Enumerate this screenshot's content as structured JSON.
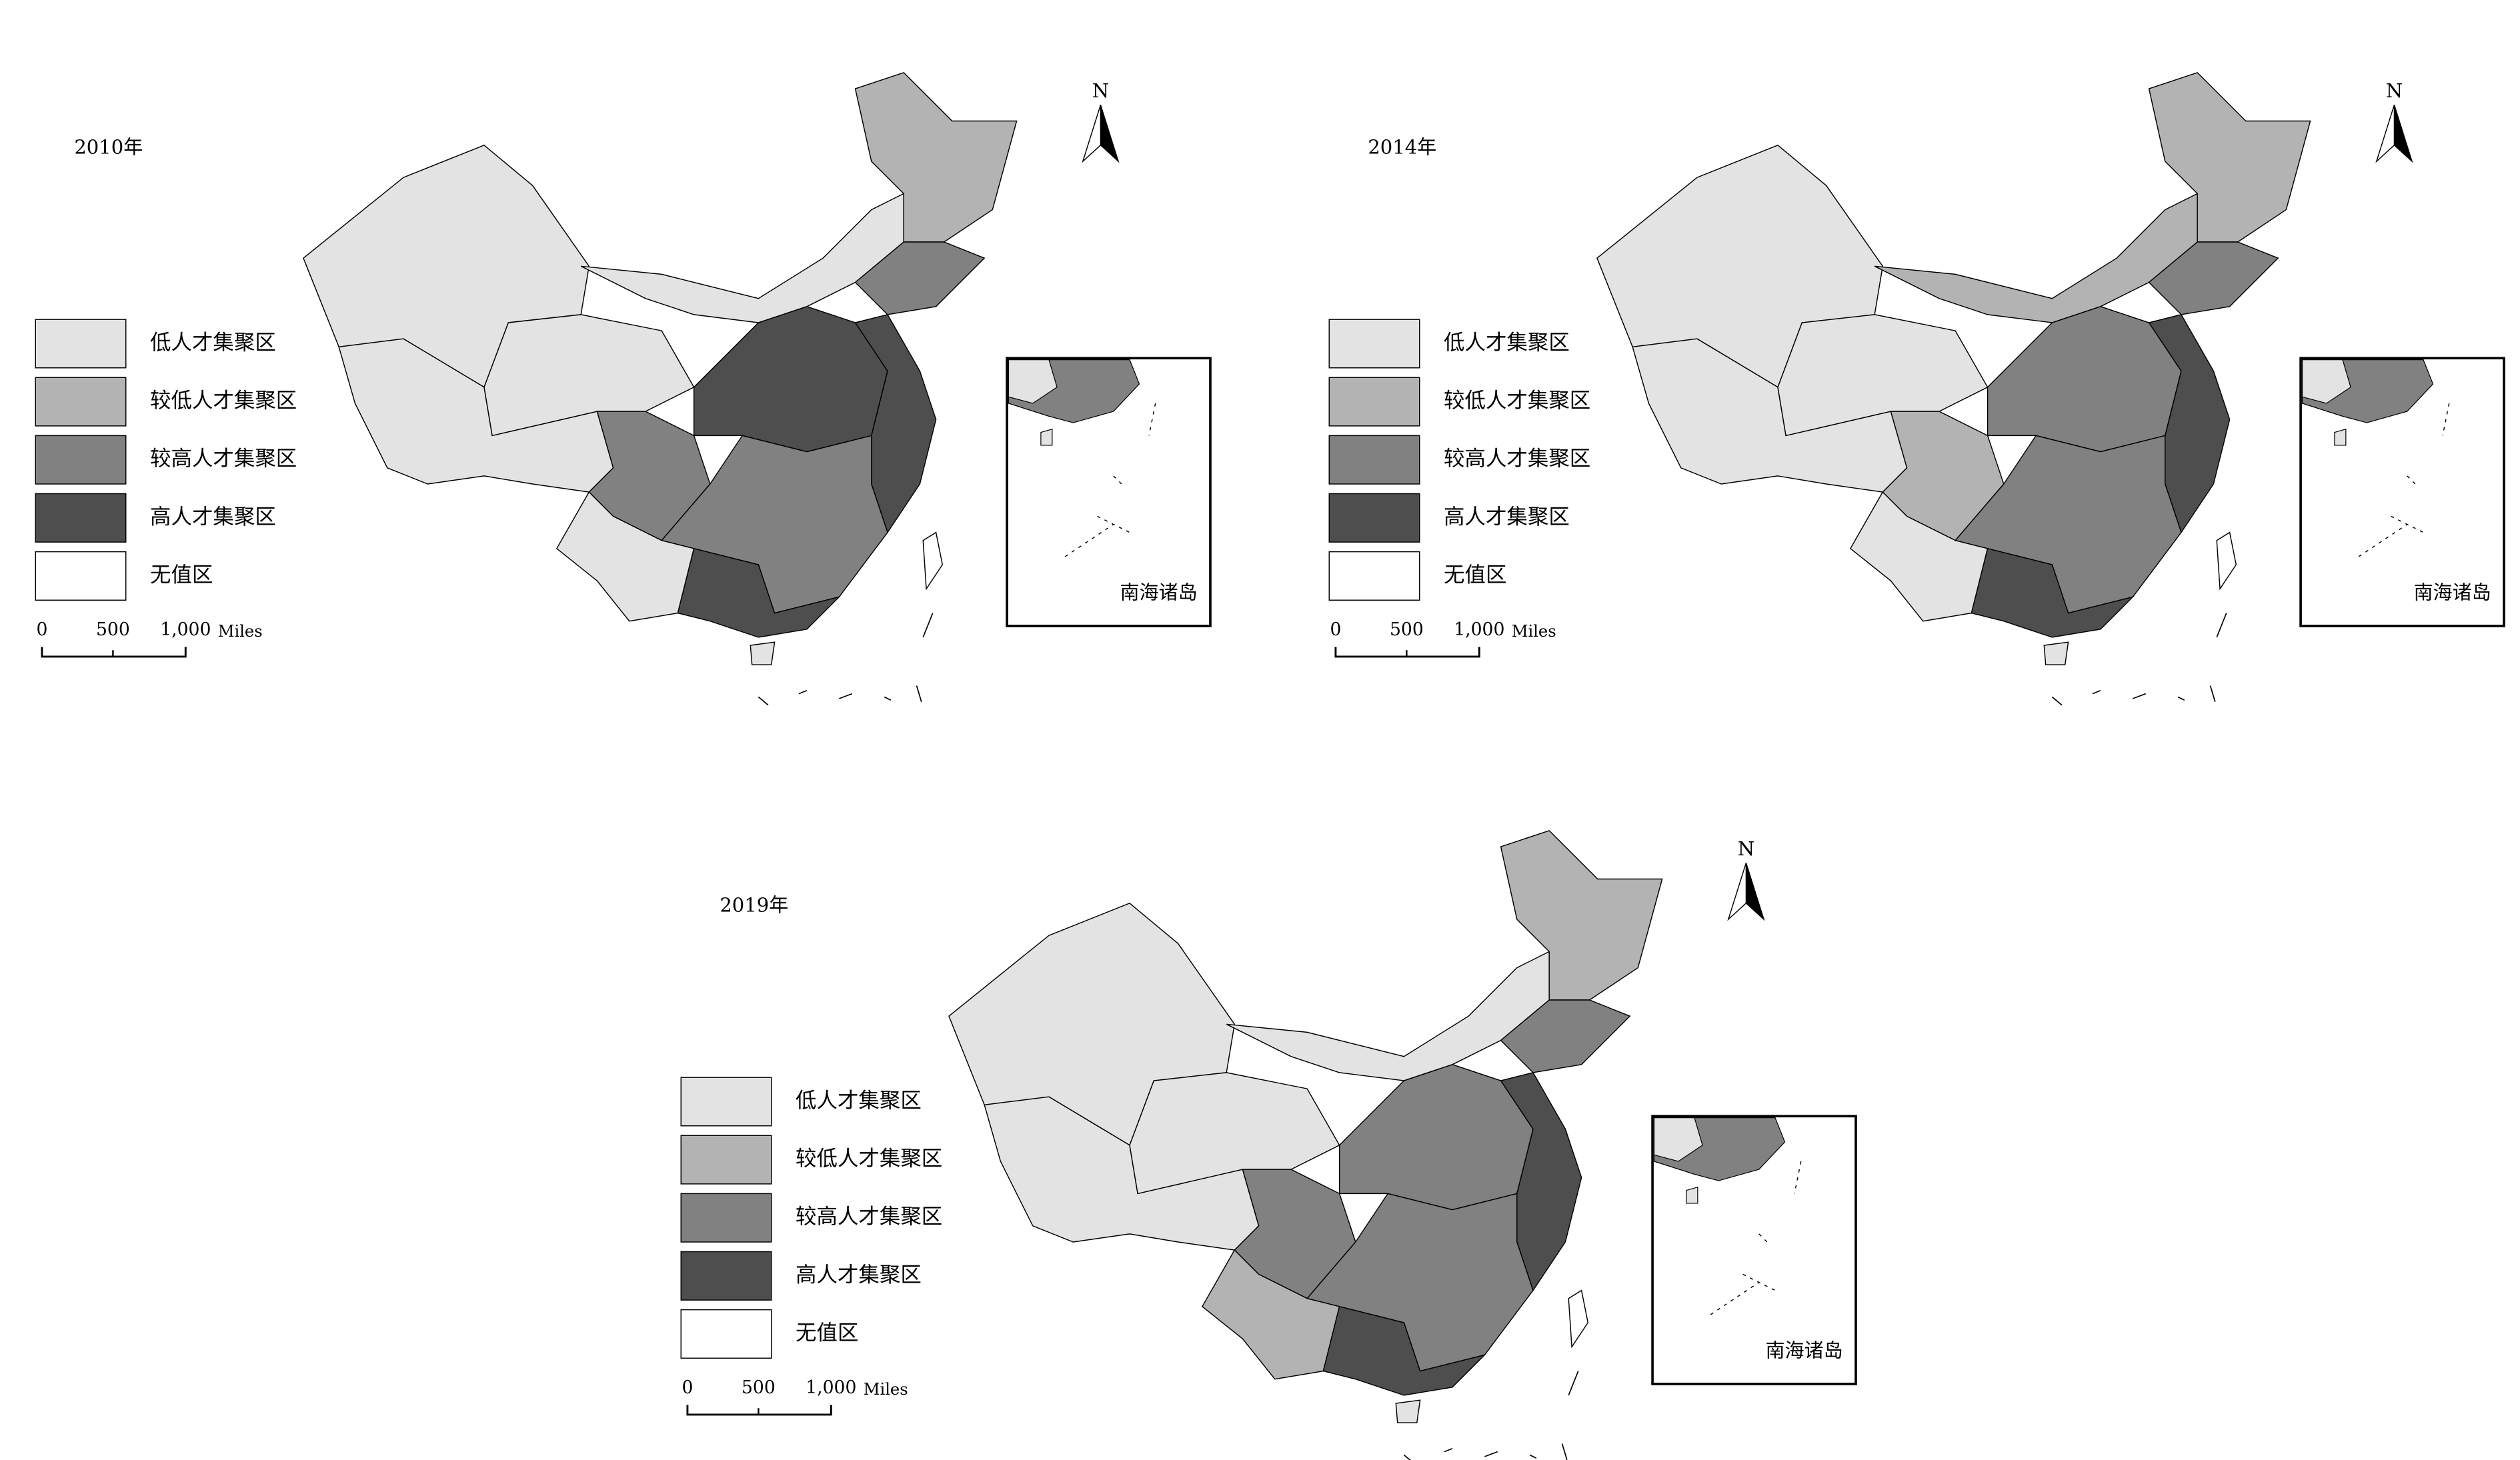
{
  "maps": [
    {
      "title": "2010年",
      "legend": [
        {
          "label": "低人才集聚区",
          "color": "#e3e3e3"
        },
        {
          "label": "较低人才集聚区",
          "color": "#b3b3b3"
        },
        {
          "label": "较高人才集聚区",
          "color": "#818181"
        },
        {
          "label": "高人才集聚区",
          "color": "#4e4e4e"
        },
        {
          "label": "无值区",
          "color": "#ffffff"
        }
      ],
      "scale": {
        "labels": [
          "0",
          "500",
          "1,000"
        ],
        "unit": "Miles"
      },
      "north": "N",
      "inset_label": "南海诸岛"
    },
    {
      "title": "2014年",
      "legend": [
        {
          "label": "低人才集聚区",
          "color": "#e3e3e3"
        },
        {
          "label": "较低人才集聚区",
          "color": "#b3b3b3"
        },
        {
          "label": "较高人才集聚区",
          "color": "#818181"
        },
        {
          "label": "高人才集聚区",
          "color": "#4e4e4e"
        },
        {
          "label": "无值区",
          "color": "#ffffff"
        }
      ],
      "scale": {
        "labels": [
          "0",
          "500",
          "1,000"
        ],
        "unit": "Miles"
      },
      "north": "N",
      "inset_label": "南海诸岛"
    },
    {
      "title": "2019年",
      "legend": [
        {
          "label": "低人才集聚区",
          "color": "#e3e3e3"
        },
        {
          "label": "较低人才集聚区",
          "color": "#b3b3b3"
        },
        {
          "label": "较高人才集聚区",
          "color": "#818181"
        },
        {
          "label": "高人才集聚区",
          "color": "#4e4e4e"
        },
        {
          "label": "无值区",
          "color": "#ffffff"
        }
      ],
      "scale": {
        "labels": [
          "0",
          "500",
          "1,000"
        ],
        "unit": "Miles"
      },
      "north": "N",
      "inset_label": "南海诸岛"
    }
  ]
}
